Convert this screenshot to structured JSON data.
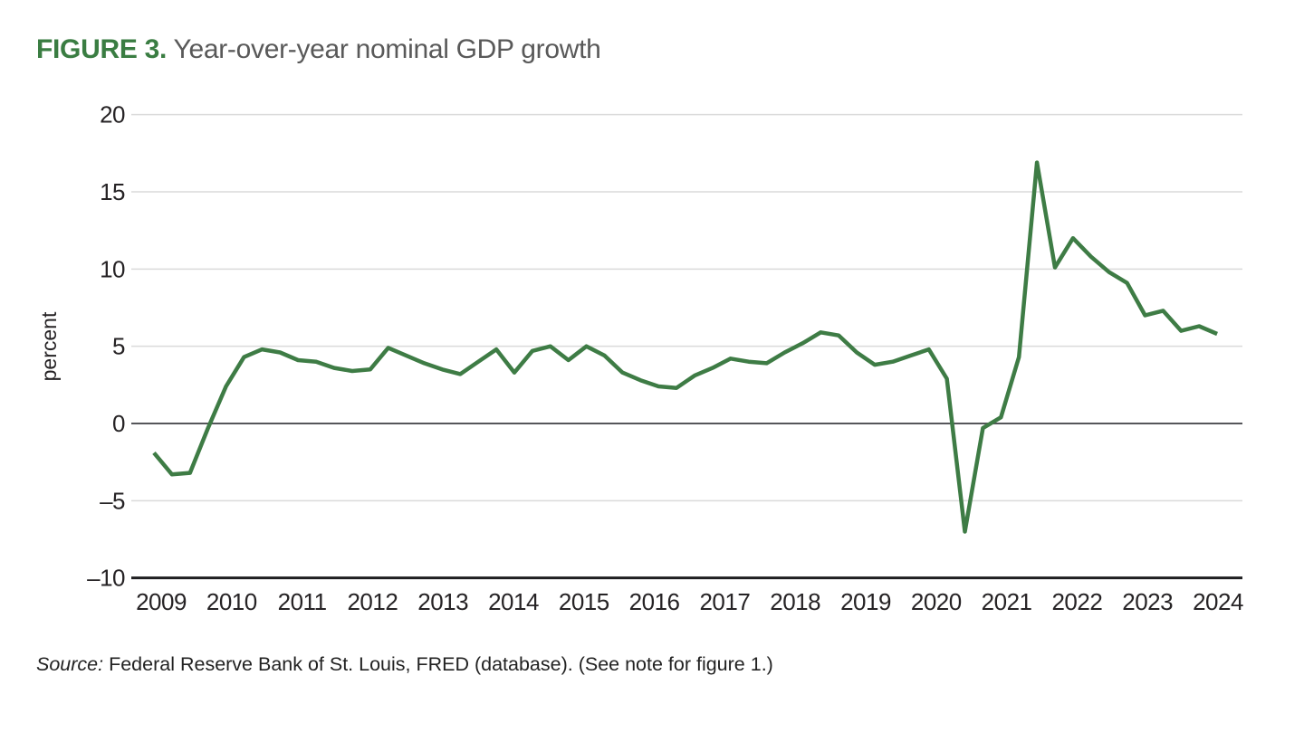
{
  "figure": {
    "label": "FIGURE 3.",
    "title": "Year-over-year nominal GDP growth"
  },
  "source_note": {
    "prefix": "Source:",
    "text": " Federal Reserve Bank of St. Louis, FRED (database). (See note for figure 1.)"
  },
  "colors": {
    "accent_green": "#3a7d42",
    "title_gray": "#595959",
    "line_green": "#3e7c45",
    "grid_gray": "#dadada",
    "zero_line_gray": "#55565a",
    "axis_black": "#1f1f21",
    "tick_text": "#262325"
  },
  "chart_data": {
    "type": "line",
    "title": "Year-over-year nominal GDP growth",
    "xlabel": "",
    "ylabel": "percent",
    "ylim": [
      -10,
      20
    ],
    "yticks": [
      20,
      15,
      10,
      5,
      0,
      -5,
      -10
    ],
    "xticks": [
      "2009",
      "2010",
      "2011",
      "2012",
      "2013",
      "2014",
      "2015",
      "2016",
      "2017",
      "2018",
      "2019",
      "2020",
      "2021",
      "2022",
      "2023",
      "2024"
    ],
    "grid": "horizontal-only",
    "legend_position": "none",
    "zero_baseline_emphasized": true,
    "series": [
      {
        "name": "Year-over-year nominal GDP growth (percent)",
        "frequency": "quarterly",
        "start": "2009Q1",
        "end": "2023Q4",
        "x": [
          "2009Q1",
          "2009Q2",
          "2009Q3",
          "2009Q4",
          "2010Q1",
          "2010Q2",
          "2010Q3",
          "2010Q4",
          "2011Q1",
          "2011Q2",
          "2011Q3",
          "2011Q4",
          "2012Q1",
          "2012Q2",
          "2012Q3",
          "2012Q4",
          "2013Q1",
          "2013Q2",
          "2013Q3",
          "2013Q4",
          "2014Q1",
          "2014Q2",
          "2014Q3",
          "2014Q4",
          "2015Q1",
          "2015Q2",
          "2015Q3",
          "2015Q4",
          "2016Q1",
          "2016Q2",
          "2016Q3",
          "2016Q4",
          "2017Q1",
          "2017Q2",
          "2017Q3",
          "2017Q4",
          "2018Q1",
          "2018Q2",
          "2018Q3",
          "2018Q4",
          "2019Q1",
          "2019Q2",
          "2019Q3",
          "2019Q4",
          "2020Q1",
          "2020Q2",
          "2020Q3",
          "2020Q4",
          "2021Q1",
          "2021Q2",
          "2021Q3",
          "2021Q4",
          "2022Q1",
          "2022Q2",
          "2022Q3",
          "2022Q4",
          "2023Q1",
          "2023Q2",
          "2023Q3",
          "2023Q4"
        ],
        "values": [
          -1.9,
          -3.3,
          -3.2,
          -0.3,
          2.4,
          4.3,
          4.8,
          4.6,
          4.1,
          4.0,
          3.6,
          3.4,
          3.5,
          4.9,
          4.4,
          3.9,
          3.5,
          3.2,
          4.0,
          4.8,
          3.3,
          4.7,
          5.0,
          4.1,
          5.0,
          4.4,
          3.3,
          2.8,
          2.4,
          2.3,
          3.1,
          3.6,
          4.2,
          4.0,
          3.9,
          4.6,
          5.2,
          5.9,
          5.7,
          4.6,
          3.8,
          4.0,
          4.4,
          4.8,
          2.9,
          -7.0,
          -0.3,
          0.4,
          4.3,
          16.9,
          10.1,
          12.0,
          10.8,
          9.8,
          9.1,
          7.0,
          7.3,
          6.0,
          6.3,
          5.8
        ]
      }
    ]
  }
}
